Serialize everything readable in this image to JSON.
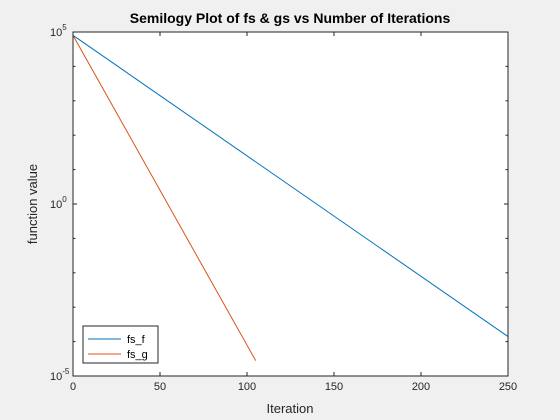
{
  "chart_data": {
    "type": "line",
    "title": "Semilogy Plot of fs & gs vs  Number of Iterations",
    "xlabel": "Iteration",
    "ylabel": "function value",
    "xlim": [
      0,
      250
    ],
    "ylim": [
      1e-05,
      100000.0
    ],
    "yscale": "log",
    "xticks": [
      0,
      50,
      100,
      150,
      200,
      250
    ],
    "xtick_labels": [
      "0",
      "50",
      "100",
      "150",
      "200",
      "250"
    ],
    "yticks": [
      1e-05,
      1,
      100000.0
    ],
    "ytick_labels": [
      {
        "base": "10",
        "exp": "-5"
      },
      {
        "base": "10",
        "exp": "0"
      },
      {
        "base": "10",
        "exp": "5"
      }
    ],
    "grid": false,
    "legend_position": "bottom-left",
    "series": [
      {
        "name": "fs_f",
        "color": "#0072bd",
        "x": [
          0,
          250
        ],
        "y": [
          80000,
          0.00014
        ]
      },
      {
        "name": "fs_g",
        "color": "#d95319",
        "x": [
          0,
          105
        ],
        "y": [
          80000,
          2.8e-05
        ]
      }
    ]
  }
}
